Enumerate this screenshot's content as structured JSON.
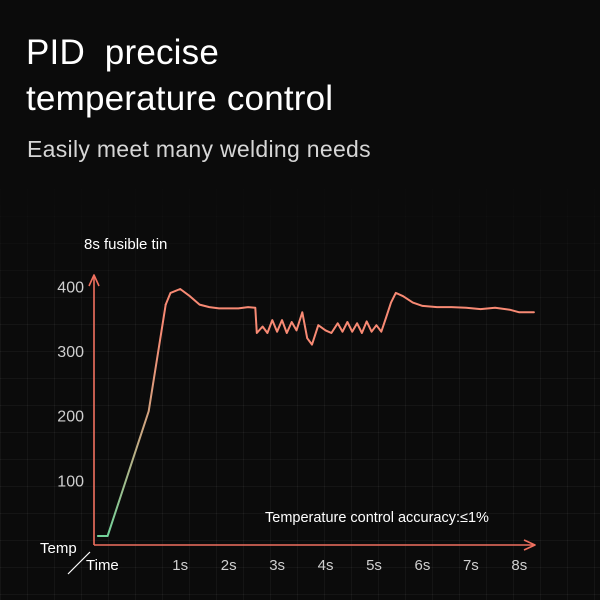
{
  "header": {
    "title_line1": "PID  precise",
    "title_line2": "temperature control",
    "subtitle": "Easily meet many welding needs"
  },
  "colors": {
    "background": "#0b0b0b",
    "axis": "#f0705f",
    "curve": "#f88a74",
    "curve_start": "#6fd39a",
    "text": "#ffffff",
    "muted": "#d6d6d6"
  },
  "chart_data": {
    "type": "line",
    "title": "8s fusible tin",
    "xlabel": "Time",
    "ylabel": "Temp",
    "annotation": "Temperature control accuracy:≤1%",
    "xlim": [
      -0.78,
      8.22
    ],
    "ylim": [
      0,
      410
    ],
    "x_ticks": [
      {
        "value": 1,
        "label": "1s"
      },
      {
        "value": 2,
        "label": "2s"
      },
      {
        "value": 3,
        "label": "3s"
      },
      {
        "value": 4,
        "label": "4s"
      },
      {
        "value": 5,
        "label": "5s"
      },
      {
        "value": 6,
        "label": "6s"
      },
      {
        "value": 7,
        "label": "7s"
      },
      {
        "value": 8,
        "label": "8s"
      }
    ],
    "y_ticks": [
      {
        "value": 100,
        "label": "100"
      },
      {
        "value": 200,
        "label": "200"
      },
      {
        "value": 300,
        "label": "300"
      },
      {
        "value": 400,
        "label": "400"
      }
    ],
    "heating": {
      "x": [
        -0.7,
        -0.5,
        0.35,
        0.7
      ],
      "y": [
        14,
        14,
        207,
        372
      ]
    },
    "series": [
      {
        "x": [
          0.7,
          0.8,
          1.0,
          1.2,
          1.4,
          1.6,
          1.8,
          2.0,
          2.2,
          2.4,
          2.55,
          2.58,
          2.7,
          2.8,
          2.9,
          3.0,
          3.1,
          3.2,
          3.3,
          3.4,
          3.52,
          3.62,
          3.72,
          3.85,
          4.0,
          4.12,
          4.25,
          4.35,
          4.45,
          4.55,
          4.65,
          4.75,
          4.85,
          4.95,
          5.05,
          5.15,
          5.25,
          5.35,
          5.45,
          5.6,
          5.8,
          6.0,
          6.3,
          6.6,
          6.9,
          7.2,
          7.5,
          7.8,
          8.0,
          8.3
        ],
        "y": [
          372,
          390,
          396,
          385,
          372,
          368,
          366,
          366,
          366,
          368,
          367,
          328,
          338,
          328,
          348,
          330,
          348,
          328,
          345,
          332,
          360,
          320,
          310,
          340,
          332,
          328,
          343,
          330,
          345,
          330,
          343,
          328,
          346,
          330,
          340,
          330,
          352,
          375,
          390,
          385,
          375,
          370,
          368,
          368,
          367,
          365,
          367,
          364,
          360,
          360
        ]
      }
    ]
  }
}
